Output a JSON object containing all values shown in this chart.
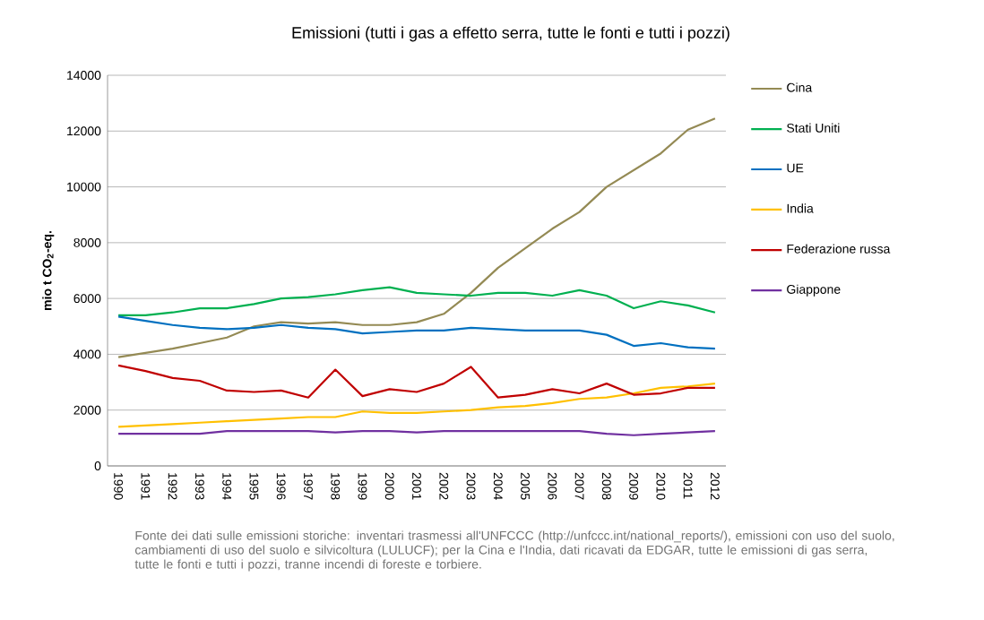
{
  "chart_data": {
    "type": "line",
    "title": "Emissioni (tutti i gas a effetto serra, tutte le fonti e tutti i pozzi)",
    "ylabel": "mio t CO$_{2}$-eq.",
    "categories": [
      "1990",
      "1991",
      "1992",
      "1993",
      "1994",
      "1995",
      "1996",
      "1997",
      "1998",
      "1999",
      "2000",
      "2001",
      "2002",
      "2003",
      "2004",
      "2005",
      "2006",
      "2007",
      "2008",
      "2009",
      "2010",
      "2011",
      "2012"
    ],
    "series": [
      {
        "name": "Cina",
        "color": "#948a54",
        "values": [
          3900,
          4050,
          4200,
          4400,
          4600,
          5000,
          5150,
          5100,
          5150,
          5050,
          5050,
          5150,
          5450,
          6200,
          7100,
          7800,
          8500,
          9100,
          10000,
          10600,
          11200,
          12050,
          12450
        ]
      },
      {
        "name": "Stati Uniti",
        "color": "#00b050",
        "values": [
          5400,
          5400,
          5500,
          5650,
          5650,
          5800,
          6000,
          6050,
          6150,
          6300,
          6400,
          6200,
          6150,
          6100,
          6200,
          6200,
          6100,
          6300,
          6100,
          5650,
          5900,
          5750,
          5500
        ]
      },
      {
        "name": "UE",
        "color": "#0070c0",
        "values": [
          5350,
          5200,
          5050,
          4950,
          4900,
          4950,
          5050,
          4950,
          4900,
          4750,
          4800,
          4850,
          4850,
          4950,
          4900,
          4850,
          4850,
          4850,
          4700,
          4300,
          4400,
          4250,
          4200
        ]
      },
      {
        "name": "India",
        "color": "#ffc000",
        "values": [
          1400,
          1450,
          1500,
          1550,
          1600,
          1650,
          1700,
          1750,
          1750,
          1950,
          1900,
          1900,
          1950,
          2000,
          2100,
          2150,
          2250,
          2400,
          2450,
          2600,
          2800,
          2850,
          2950
        ]
      },
      {
        "name": "Federazione russa",
        "color": "#c00000",
        "values": [
          3600,
          3400,
          3150,
          3050,
          2700,
          2650,
          2700,
          2450,
          3450,
          2500,
          2750,
          2650,
          2950,
          3550,
          2450,
          2550,
          2750,
          2600,
          2950,
          2550,
          2600,
          2800,
          2800
        ]
      },
      {
        "name": "Giappone",
        "color": "#7030a0",
        "values": [
          1150,
          1150,
          1150,
          1150,
          1250,
          1250,
          1250,
          1250,
          1200,
          1250,
          1250,
          1200,
          1250,
          1250,
          1250,
          1250,
          1250,
          1250,
          1150,
          1100,
          1150,
          1200,
          1250
        ]
      }
    ],
    "ylim": [
      0,
      14000
    ],
    "yticks": [
      0,
      2000,
      4000,
      6000,
      8000,
      10000,
      12000,
      14000
    ],
    "grid": "y",
    "legend": "right",
    "marker": "none",
    "line_style": "solid",
    "annotations": [
      "Fonte dei dati sulle emissioni storiche: inventari trasmessi all'UNFCCC (http://unfccc.int/national_reports/), emissioni con uso del suolo, cambiamenti di uso del suolo e silvicoltura (LULUCF); per la Cina e l'India, dati ricavati da EDGAR, tutte le emissioni di gas serra, tutte le fonti e tutti i pozzi, tranne incendi di foreste e torbiere."
    ]
  }
}
